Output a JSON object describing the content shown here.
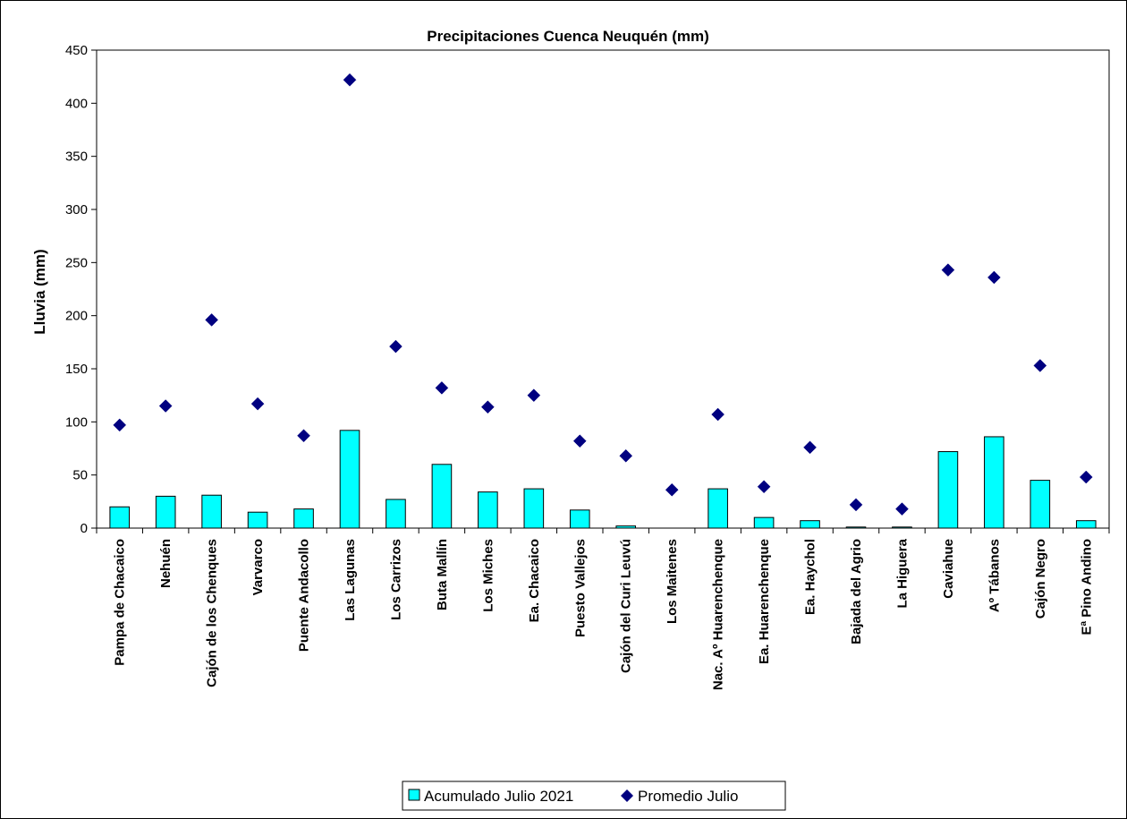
{
  "chart_data": {
    "type": "bar",
    "title": "Precipitaciones Cuenca Neuquén (mm)",
    "xlabel": "",
    "ylabel": "Lluvia (mm)",
    "ylim": [
      0,
      450
    ],
    "yticks": [
      0,
      50,
      100,
      150,
      200,
      250,
      300,
      350,
      400,
      450
    ],
    "grid": false,
    "legend_position": "bottom",
    "categories": [
      "Pampa de Chacaico",
      "Nehuén",
      "Cajón de los Chenques",
      "Varvarco",
      "Puente Andacollo",
      "Las Lagunas",
      "Los Carrizos",
      "Buta Mallín",
      "Los Miches",
      "Ea. Chacaico",
      "Puesto Vallejos",
      "Cajón del Curi Leuvú",
      "Los Maitenes",
      "Nac. Aº Huarenchenque",
      "Ea. Huarenchenque",
      "Ea. Haychol",
      "Bajada del Agrio",
      "La Higuera",
      "Caviahue",
      "Aº Tábanos",
      "Cajón Negro",
      "Eª Pino Andino"
    ],
    "series": [
      {
        "name": "Acumulado Julio 2021",
        "kind": "bar",
        "color": "#00ffff",
        "values": [
          20,
          30,
          31,
          15,
          18,
          92,
          27,
          60,
          34,
          37,
          17,
          2,
          0,
          37,
          10,
          7,
          1,
          1,
          72,
          86,
          45,
          7
        ]
      },
      {
        "name": "Promedio Julio",
        "kind": "scatter",
        "marker": "diamond",
        "color": "#000080",
        "values": [
          97,
          115,
          196,
          117,
          87,
          422,
          171,
          132,
          114,
          125,
          82,
          68,
          36,
          107,
          39,
          76,
          22,
          18,
          243,
          236,
          153,
          48
        ]
      }
    ]
  }
}
